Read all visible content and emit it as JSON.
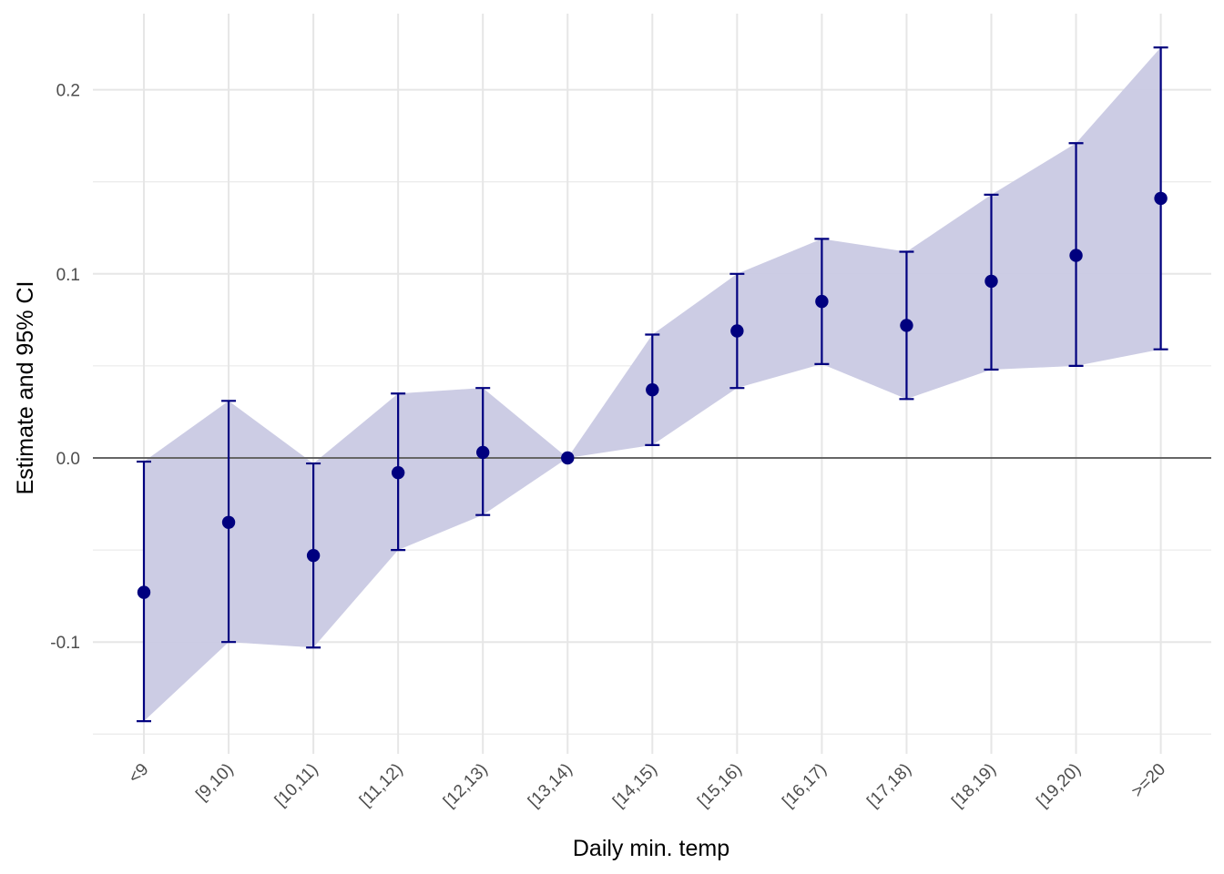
{
  "chart_data": {
    "type": "scatter",
    "xlabel": "Daily min. temp",
    "ylabel": "Estimate and 95% CI",
    "categories": [
      "<9",
      "[9,10)",
      "[10,11)",
      "[11,12)",
      "[12,13)",
      "[13,14)",
      "[14,15)",
      "[15,16)",
      "[16,17)",
      "[17,18)",
      "[18,19)",
      "[19,20)",
      ">=20"
    ],
    "series": [
      {
        "estimate": [
          -0.073,
          -0.035,
          -0.053,
          -0.008,
          0.003,
          0.0,
          0.037,
          0.069,
          0.085,
          0.072,
          0.096,
          0.11,
          0.141
        ],
        "ci_lower": [
          -0.143,
          -0.1,
          -0.103,
          -0.05,
          -0.031,
          0.0,
          0.007,
          0.038,
          0.051,
          0.032,
          0.048,
          0.05,
          0.059
        ],
        "ci_upper": [
          -0.002,
          0.031,
          -0.003,
          0.035,
          0.038,
          0.0,
          0.067,
          0.1,
          0.119,
          0.112,
          0.143,
          0.171,
          0.223
        ]
      }
    ],
    "ylim": [
      -0.16,
      0.24
    ],
    "yticks": [
      -0.1,
      0.0,
      0.1,
      0.2
    ],
    "ytick_labels": [
      "-0.1",
      "0.0",
      "0.1",
      "0.2"
    ],
    "reference_line": 0.0,
    "grid": true,
    "colors": {
      "point": "#00007F",
      "errorbar": "#00007F",
      "ribbon": "#C9C9E3",
      "grid": "#E6E6E6",
      "reference_line": "#666666"
    }
  }
}
